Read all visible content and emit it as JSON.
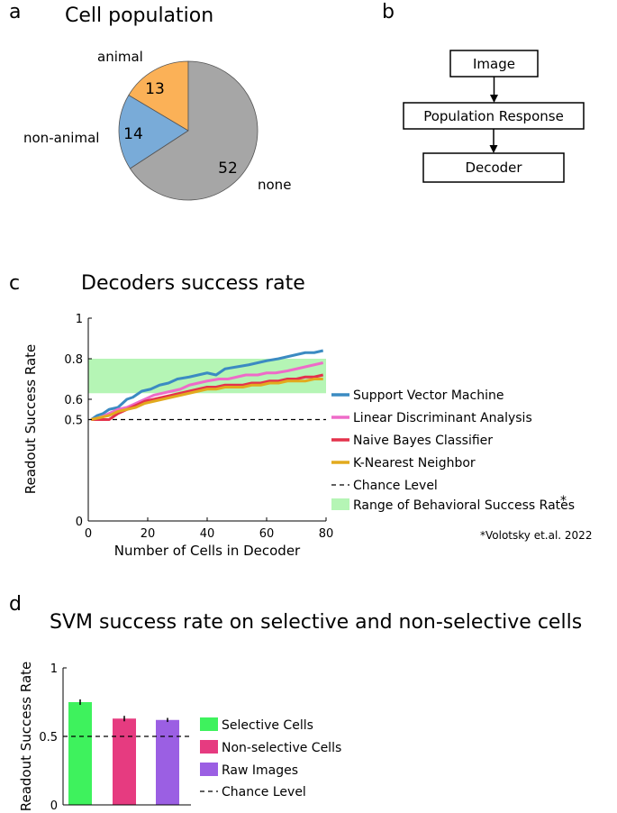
{
  "panels": {
    "a": "a",
    "b": "b",
    "c": "c",
    "d": "d"
  },
  "chart_data": [
    {
      "type": "pie",
      "title": "Cell population",
      "slices": [
        {
          "label": "animal",
          "value": 13,
          "color": "#fbb157"
        },
        {
          "label": "non-animal",
          "value": 14,
          "color": "#79abd8"
        },
        {
          "label": "none",
          "value": 52,
          "color": "#a6a6a6"
        }
      ]
    },
    {
      "type": "diagram",
      "nodes": [
        "Image",
        "Population Response",
        "Decoder"
      ],
      "edges": [
        [
          "Image",
          "Population Response"
        ],
        [
          "Population Response",
          "Decoder"
        ]
      ]
    },
    {
      "type": "line",
      "title": "Decoders success rate",
      "xlabel": "Number of Cells in Decoder",
      "ylabel": "Readout Success Rate",
      "xlim": [
        0,
        80
      ],
      "ylim": [
        0,
        1
      ],
      "xticks": [
        "0",
        "20",
        "40",
        "60",
        "80"
      ],
      "yticks": [
        "0",
        "0.5",
        "0.6",
        "0.8",
        "1"
      ],
      "ytick_values": [
        0,
        0.5,
        0.6,
        0.8,
        1
      ],
      "band": {
        "label": "Range of Behavioral Success Rates",
        "marker": "*",
        "low": 0.63,
        "high": 0.8,
        "color": "#b5f5b5"
      },
      "chance": {
        "label": "Chance Level",
        "value": 0.5
      },
      "series": [
        {
          "name": "Support Vector Machine",
          "color": "#3b8bc2",
          "points": [
            [
              1,
              0.5
            ],
            [
              3,
              0.52
            ],
            [
              5,
              0.53
            ],
            [
              7,
              0.55
            ],
            [
              10,
              0.56
            ],
            [
              13,
              0.6
            ],
            [
              15,
              0.61
            ],
            [
              18,
              0.64
            ],
            [
              21,
              0.65
            ],
            [
              24,
              0.67
            ],
            [
              27,
              0.68
            ],
            [
              30,
              0.7
            ],
            [
              34,
              0.71
            ],
            [
              37,
              0.72
            ],
            [
              40,
              0.73
            ],
            [
              43,
              0.72
            ],
            [
              46,
              0.75
            ],
            [
              50,
              0.76
            ],
            [
              54,
              0.77
            ],
            [
              57,
              0.78
            ],
            [
              60,
              0.79
            ],
            [
              64,
              0.8
            ],
            [
              67,
              0.81
            ],
            [
              70,
              0.82
            ],
            [
              73,
              0.83
            ],
            [
              76,
              0.83
            ],
            [
              79,
              0.84
            ]
          ]
        },
        {
          "name": "Linear Discriminant Analysis",
          "color": "#ee6bc8",
          "points": [
            [
              1,
              0.5
            ],
            [
              4,
              0.51
            ],
            [
              7,
              0.53
            ],
            [
              10,
              0.55
            ],
            [
              13,
              0.56
            ],
            [
              16,
              0.58
            ],
            [
              19,
              0.6
            ],
            [
              22,
              0.62
            ],
            [
              25,
              0.63
            ],
            [
              28,
              0.64
            ],
            [
              31,
              0.65
            ],
            [
              34,
              0.67
            ],
            [
              37,
              0.68
            ],
            [
              40,
              0.69
            ],
            [
              44,
              0.7
            ],
            [
              47,
              0.7
            ],
            [
              50,
              0.71
            ],
            [
              53,
              0.72
            ],
            [
              57,
              0.72
            ],
            [
              60,
              0.73
            ],
            [
              63,
              0.73
            ],
            [
              67,
              0.74
            ],
            [
              70,
              0.75
            ],
            [
              73,
              0.76
            ],
            [
              76,
              0.77
            ],
            [
              79,
              0.78
            ]
          ]
        },
        {
          "name": "Naive Bayes Classifier",
          "color": "#e4324b",
          "points": [
            [
              1,
              0.5
            ],
            [
              4,
              0.5
            ],
            [
              7,
              0.5
            ],
            [
              10,
              0.53
            ],
            [
              13,
              0.55
            ],
            [
              16,
              0.57
            ],
            [
              19,
              0.59
            ],
            [
              22,
              0.6
            ],
            [
              25,
              0.61
            ],
            [
              28,
              0.62
            ],
            [
              31,
              0.63
            ],
            [
              34,
              0.64
            ],
            [
              37,
              0.65
            ],
            [
              40,
              0.66
            ],
            [
              43,
              0.66
            ],
            [
              46,
              0.67
            ],
            [
              49,
              0.67
            ],
            [
              52,
              0.67
            ],
            [
              55,
              0.68
            ],
            [
              58,
              0.68
            ],
            [
              61,
              0.69
            ],
            [
              64,
              0.69
            ],
            [
              67,
              0.7
            ],
            [
              70,
              0.7
            ],
            [
              73,
              0.71
            ],
            [
              76,
              0.71
            ],
            [
              79,
              0.72
            ]
          ]
        },
        {
          "name": "K-Nearest Neighbor",
          "color": "#e2aa1e",
          "points": [
            [
              1,
              0.5
            ],
            [
              4,
              0.51
            ],
            [
              7,
              0.52
            ],
            [
              10,
              0.54
            ],
            [
              13,
              0.55
            ],
            [
              16,
              0.56
            ],
            [
              19,
              0.58
            ],
            [
              22,
              0.59
            ],
            [
              25,
              0.6
            ],
            [
              28,
              0.61
            ],
            [
              31,
              0.62
            ],
            [
              34,
              0.63
            ],
            [
              37,
              0.64
            ],
            [
              40,
              0.65
            ],
            [
              43,
              0.65
            ],
            [
              46,
              0.66
            ],
            [
              49,
              0.66
            ],
            [
              52,
              0.66
            ],
            [
              55,
              0.67
            ],
            [
              58,
              0.67
            ],
            [
              61,
              0.68
            ],
            [
              64,
              0.68
            ],
            [
              67,
              0.69
            ],
            [
              70,
              0.69
            ],
            [
              73,
              0.69
            ],
            [
              76,
              0.7
            ],
            [
              79,
              0.7
            ]
          ]
        }
      ],
      "footnote": "*Volotsky et.al. 2022"
    },
    {
      "type": "bar",
      "title": "SVM success rate on selective and non-selective cells",
      "ylabel": "Readout Success Rate",
      "ylim": [
        0,
        1
      ],
      "yticks": [
        "0",
        "0.5",
        "1"
      ],
      "ytick_values": [
        0,
        0.5,
        1
      ],
      "categories": [
        "Selective Cells",
        "Non-selective Cells",
        "Raw Images"
      ],
      "values": [
        0.75,
        0.63,
        0.62
      ],
      "errors": [
        0.02,
        0.02,
        0.015
      ],
      "colors": [
        "#3ef25d",
        "#e63b80",
        "#9b5fe3"
      ],
      "chance": {
        "label": "Chance Level",
        "value": 0.5
      }
    }
  ]
}
